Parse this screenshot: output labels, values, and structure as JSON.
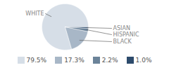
{
  "chart_data": {
    "type": "pie",
    "categories": [
      "WHITE",
      "BLACK",
      "HISPANIC",
      "ASIAN"
    ],
    "values": [
      79.5,
      17.3,
      2.2,
      1.0
    ],
    "value_labels": [
      "79.5%",
      "17.3%",
      "2.2%",
      "1.0%"
    ],
    "colors": [
      "#d6dee7",
      "#a8b7c7",
      "#6b8399",
      "#2d4b6c"
    ],
    "legend": "bottom"
  }
}
